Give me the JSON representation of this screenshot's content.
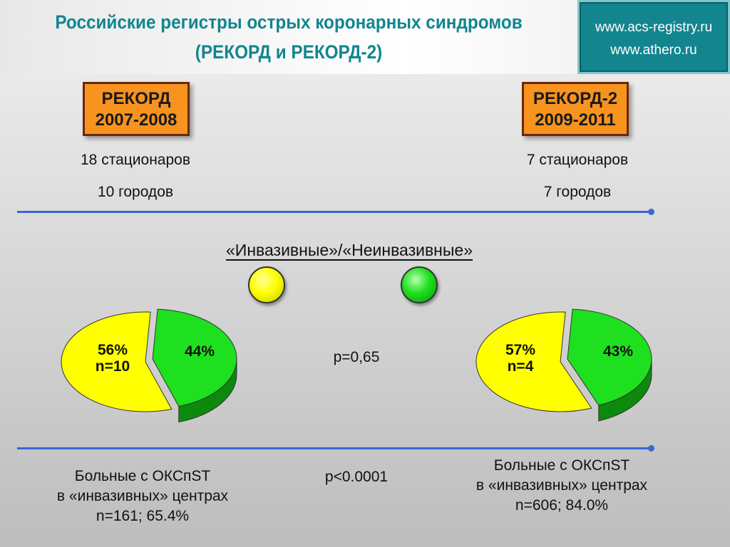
{
  "header": {
    "title_line1": "Российские регистры острых коронарных синдромов",
    "title_line2": "(РЕКОРД и РЕКОРД-2)",
    "urls": [
      "www.acs-registry.ru",
      "www.athero.ru"
    ]
  },
  "registries": [
    {
      "name": "РЕКОРД",
      "years": "2007-2008",
      "hospitals": "18 стационаров",
      "cities": "10 городов"
    },
    {
      "name": "РЕКОРД-2",
      "years": "2009-2011",
      "hospitals": "7 стационаров",
      "cities": "7 городов"
    }
  ],
  "legend": {
    "title": "«Инвазивные»/«Неинвазивные»",
    "items": [
      {
        "name": "invasive",
        "color": "#ffff00"
      },
      {
        "name": "non-invasive",
        "color": "#1ee01e"
      }
    ]
  },
  "p_values": {
    "pies": "p=0,65",
    "centers": "p<0.0001"
  },
  "bottom": [
    {
      "line1": "Больные с ОКСпST",
      "line2": "в «инвазивных» центрах",
      "line3": "n=161; 65.4%"
    },
    {
      "line1": "Больные с ОКСпST",
      "line2": "в «инвазивных» центрах",
      "line3": "n=606; 84.0%"
    }
  ],
  "colors": {
    "accent": "#11868f",
    "badge": "#f7931e",
    "rule": "#3a66d6",
    "invasive": "#ffff00",
    "noninvasive": "#1ee01e"
  },
  "chart_data": [
    {
      "type": "pie",
      "title": "РЕКОРД",
      "slices": [
        {
          "name": "invasive",
          "value": 56,
          "label": "56%",
          "sublabel": "n=10",
          "color": "#ffff00"
        },
        {
          "name": "non-invasive",
          "value": 44,
          "label": "44%",
          "color": "#1ee01e"
        }
      ]
    },
    {
      "type": "pie",
      "title": "РЕКОРД-2",
      "slices": [
        {
          "name": "invasive",
          "value": 57,
          "label": "57%",
          "sublabel": "n=4",
          "color": "#ffff00"
        },
        {
          "name": "non-invasive",
          "value": 43,
          "label": "43%",
          "color": "#1ee01e"
        }
      ]
    }
  ]
}
